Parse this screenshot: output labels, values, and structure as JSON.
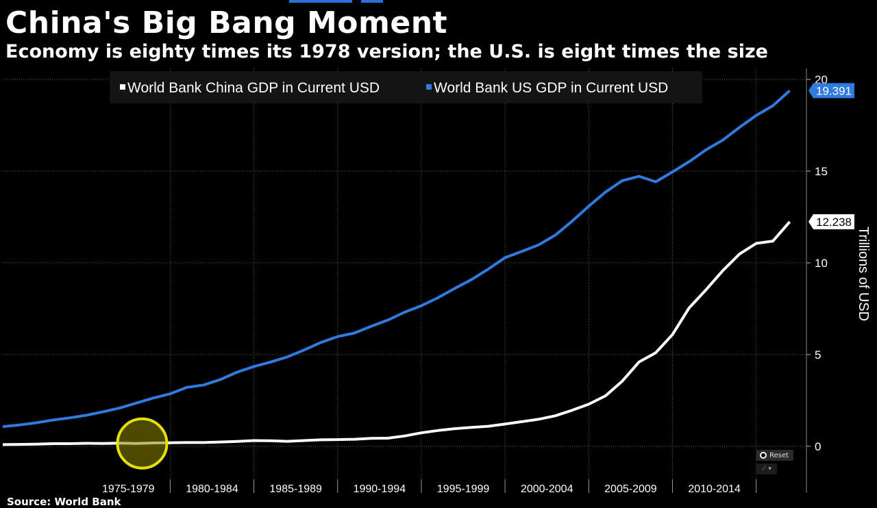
{
  "title": "China's Big Bang Moment",
  "subtitle": "Economy is eighty times its 1978 version; the U.S. is eight times the size",
  "source": "Source: World Bank",
  "controls": {
    "reset_label": "Reset"
  },
  "colors": {
    "china": "#ffffff",
    "us": "#2f7be0",
    "highlight": "#e6e000"
  },
  "chart_data": {
    "type": "line",
    "title": "China's Big Bang Moment",
    "subtitle": "Economy is eighty times its 1978 version; the U.S. is eight times the size",
    "xlabel": "",
    "ylabel": "Trillions of USD",
    "ylim": [
      -1.8,
      20.6
    ],
    "y_ticks": [
      0,
      5,
      10,
      15,
      20
    ],
    "xlim": [
      1970,
      2018
    ],
    "x_tick_labels": [
      "1975-1979",
      "1980-1984",
      "1985-1989",
      "1990-1994",
      "1995-1999",
      "2000-2004",
      "2005-2009",
      "2010-2014"
    ],
    "x_tick_groups": [
      [
        1975,
        1979
      ],
      [
        1980,
        1984
      ],
      [
        1985,
        1989
      ],
      [
        1990,
        1994
      ],
      [
        1995,
        1999
      ],
      [
        2000,
        2004
      ],
      [
        2005,
        2009
      ],
      [
        2010,
        2014
      ]
    ],
    "grid": true,
    "legend_position": "top",
    "x": [
      1970,
      1971,
      1972,
      1973,
      1974,
      1975,
      1976,
      1977,
      1978,
      1979,
      1980,
      1981,
      1982,
      1983,
      1984,
      1985,
      1986,
      1987,
      1988,
      1989,
      1990,
      1991,
      1992,
      1993,
      1994,
      1995,
      1996,
      1997,
      1998,
      1999,
      2000,
      2001,
      2002,
      2003,
      2004,
      2005,
      2006,
      2007,
      2008,
      2009,
      2010,
      2011,
      2012,
      2013,
      2014,
      2015,
      2016,
      2017
    ],
    "series": [
      {
        "name": "World Bank China GDP in Current USD",
        "end_label": "12.238",
        "values": [
          0.09,
          0.1,
          0.11,
          0.14,
          0.14,
          0.16,
          0.15,
          0.17,
          0.15,
          0.18,
          0.19,
          0.2,
          0.2,
          0.23,
          0.26,
          0.31,
          0.3,
          0.27,
          0.31,
          0.35,
          0.36,
          0.38,
          0.43,
          0.44,
          0.56,
          0.73,
          0.86,
          0.96,
          1.03,
          1.09,
          1.21,
          1.34,
          1.47,
          1.66,
          1.96,
          2.29,
          2.75,
          3.55,
          4.59,
          5.1,
          6.09,
          7.55,
          8.53,
          9.57,
          10.48,
          11.06,
          11.19,
          12.24
        ]
      },
      {
        "name": "World Bank US GDP in Current USD",
        "end_label": "19.391",
        "values": [
          1.07,
          1.16,
          1.28,
          1.43,
          1.55,
          1.69,
          1.88,
          2.09,
          2.36,
          2.63,
          2.86,
          3.21,
          3.34,
          3.64,
          4.04,
          4.35,
          4.59,
          4.87,
          5.25,
          5.66,
          5.98,
          6.17,
          6.54,
          6.88,
          7.31,
          7.66,
          8.1,
          8.61,
          9.09,
          9.66,
          10.28,
          10.62,
          10.98,
          11.51,
          12.27,
          13.09,
          13.86,
          14.48,
          14.72,
          14.42,
          14.96,
          15.52,
          16.16,
          16.69,
          17.39,
          18.04,
          18.57,
          19.39
        ]
      }
    ],
    "annotations": [
      {
        "type": "circle",
        "x": 1978,
        "y": 0.15
      }
    ]
  }
}
